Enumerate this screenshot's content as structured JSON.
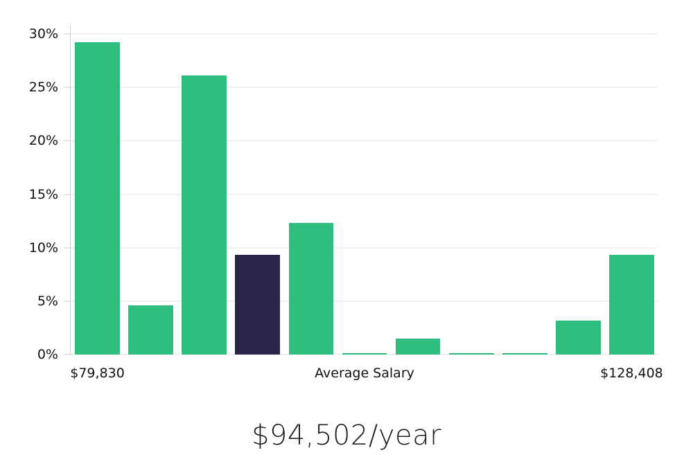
{
  "title": "$94,502/year",
  "chart_data": {
    "type": "bar",
    "subtype": "salary-distribution-histogram",
    "title": "$94,502/year",
    "values": [
      29.2,
      4.6,
      26.1,
      9.3,
      12.3,
      0.1,
      1.5,
      0.1,
      0.1,
      3.2,
      9.3
    ],
    "value_unit": "%",
    "highlight_index": 3,
    "ylim": [
      0,
      30
    ],
    "y_tick_values": [
      0,
      5,
      10,
      15,
      20,
      25,
      30
    ],
    "y_tick_labels": [
      "0%",
      "5%",
      "10%",
      "15%",
      "20%",
      "25%",
      "30%"
    ],
    "x_tick_labels": [
      "$79,830",
      "Average Salary",
      "$128,408"
    ],
    "x_tick_positions_pct": [
      4.545,
      50,
      95.455
    ],
    "grid": "horizontal",
    "legend": "none",
    "colors": {
      "bar": "#2dbe7e",
      "bar_highlight": "#2a2449",
      "gridline": "#e6e6e6",
      "baseline": "#d9d9d9",
      "spine": "#d4d4d4",
      "tick": "#cccccc",
      "tick_label": "#111111",
      "title": "#222222"
    }
  }
}
